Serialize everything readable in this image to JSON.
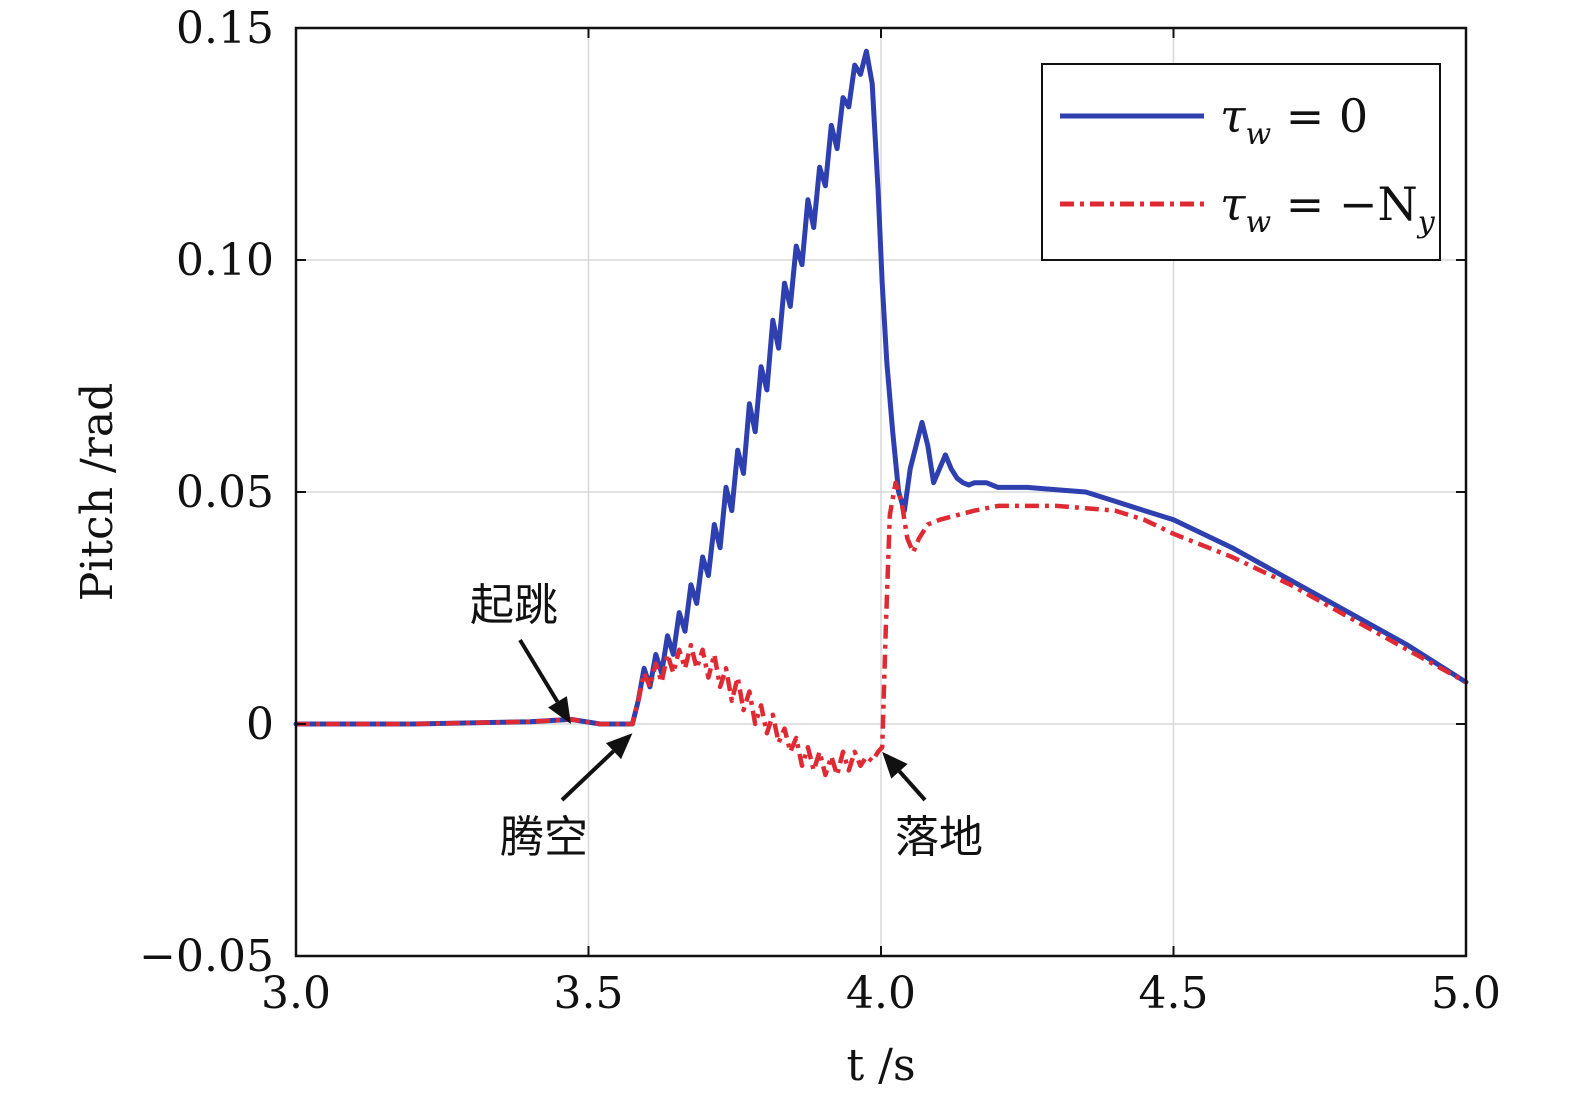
{
  "chart_data": {
    "type": "line",
    "title": "",
    "xlabel": "t /s",
    "ylabel": "Pitch /rad",
    "xlim": [
      3.0,
      5.0
    ],
    "ylim": [
      -0.05,
      0.15
    ],
    "xticks": [
      "3.0",
      "3.5",
      "4.0",
      "4.5",
      "5.0"
    ],
    "yticks": [
      "−0.05",
      "0",
      "0.05",
      "0.10",
      "0.15"
    ],
    "grid": true,
    "legend": {
      "position": "top-right"
    },
    "series": [
      {
        "name": "τw = 0",
        "legend_main": "τ",
        "legend_sub": "w",
        "legend_rest": " = 0",
        "color": "#2e3fb0",
        "style": "solid",
        "x": [
          3.0,
          3.2,
          3.4,
          3.47,
          3.52,
          3.575,
          3.585,
          3.595,
          3.605,
          3.615,
          3.625,
          3.635,
          3.645,
          3.655,
          3.665,
          3.675,
          3.685,
          3.695,
          3.705,
          3.715,
          3.725,
          3.735,
          3.745,
          3.755,
          3.765,
          3.775,
          3.785,
          3.795,
          3.805,
          3.815,
          3.825,
          3.835,
          3.845,
          3.855,
          3.865,
          3.875,
          3.885,
          3.895,
          3.905,
          3.915,
          3.925,
          3.935,
          3.945,
          3.955,
          3.965,
          3.975,
          3.985,
          3.995,
          4.002,
          4.01,
          4.02,
          4.03,
          4.04,
          4.05,
          4.06,
          4.07,
          4.08,
          4.09,
          4.1,
          4.11,
          4.12,
          4.13,
          4.14,
          4.15,
          4.16,
          4.18,
          4.2,
          4.25,
          4.3,
          4.35,
          4.4,
          4.45,
          4.5,
          4.6,
          4.7,
          4.8,
          4.9,
          5.0
        ],
        "y": [
          0.0,
          0.0,
          0.0005,
          0.001,
          0.0,
          0.0,
          0.005,
          0.012,
          0.008,
          0.015,
          0.011,
          0.019,
          0.015,
          0.024,
          0.02,
          0.03,
          0.026,
          0.036,
          0.032,
          0.043,
          0.038,
          0.051,
          0.046,
          0.059,
          0.054,
          0.069,
          0.063,
          0.077,
          0.072,
          0.087,
          0.081,
          0.095,
          0.09,
          0.103,
          0.099,
          0.113,
          0.107,
          0.12,
          0.116,
          0.129,
          0.124,
          0.135,
          0.133,
          0.142,
          0.14,
          0.145,
          0.138,
          0.115,
          0.095,
          0.078,
          0.063,
          0.05,
          0.046,
          0.055,
          0.06,
          0.065,
          0.06,
          0.052,
          0.055,
          0.058,
          0.055,
          0.053,
          0.052,
          0.0515,
          0.052,
          0.052,
          0.051,
          0.051,
          0.0505,
          0.05,
          0.048,
          0.046,
          0.044,
          0.038,
          0.031,
          0.024,
          0.017,
          0.009
        ]
      },
      {
        "name": "τw = −Ny",
        "legend_main": "τ",
        "legend_sub": "w",
        "legend_rest": " = −N",
        "legend_sub2": "y",
        "color": "#e02a33",
        "style": "dashdot",
        "x": [
          3.0,
          3.2,
          3.4,
          3.47,
          3.52,
          3.575,
          3.585,
          3.595,
          3.605,
          3.615,
          3.625,
          3.635,
          3.645,
          3.655,
          3.665,
          3.675,
          3.685,
          3.695,
          3.705,
          3.715,
          3.725,
          3.735,
          3.745,
          3.755,
          3.765,
          3.775,
          3.785,
          3.795,
          3.805,
          3.815,
          3.825,
          3.835,
          3.845,
          3.855,
          3.865,
          3.875,
          3.885,
          3.895,
          3.905,
          3.915,
          3.925,
          3.935,
          3.945,
          3.955,
          3.965,
          3.975,
          3.985,
          3.995,
          4.002,
          4.008,
          4.015,
          4.025,
          4.035,
          4.045,
          4.055,
          4.065,
          4.08,
          4.1,
          4.13,
          4.16,
          4.2,
          4.25,
          4.3,
          4.35,
          4.4,
          4.45,
          4.5,
          4.6,
          4.7,
          4.8,
          4.9,
          5.0
        ],
        "y": [
          0.0,
          0.0,
          0.0005,
          0.001,
          0.0,
          0.0,
          0.005,
          0.011,
          0.008,
          0.013,
          0.009,
          0.015,
          0.011,
          0.016,
          0.012,
          0.017,
          0.012,
          0.016,
          0.01,
          0.015,
          0.008,
          0.012,
          0.005,
          0.01,
          0.003,
          0.007,
          0.0,
          0.004,
          -0.002,
          0.002,
          -0.004,
          -0.001,
          -0.006,
          -0.003,
          -0.009,
          -0.005,
          -0.01,
          -0.006,
          -0.011,
          -0.007,
          -0.011,
          -0.006,
          -0.01,
          -0.006,
          -0.009,
          -0.007,
          -0.008,
          -0.006,
          -0.005,
          0.02,
          0.045,
          0.052,
          0.048,
          0.04,
          0.037,
          0.04,
          0.043,
          0.044,
          0.045,
          0.046,
          0.047,
          0.047,
          0.047,
          0.0465,
          0.046,
          0.044,
          0.041,
          0.036,
          0.03,
          0.023,
          0.016,
          0.009
        ]
      }
    ],
    "annotations": [
      {
        "text": "起跳",
        "x": 3.47,
        "y": 0.0
      },
      {
        "text": "腾空",
        "x": 3.575,
        "y": -0.002
      },
      {
        "text": "落地",
        "x": 4.002,
        "y": -0.006
      }
    ]
  }
}
